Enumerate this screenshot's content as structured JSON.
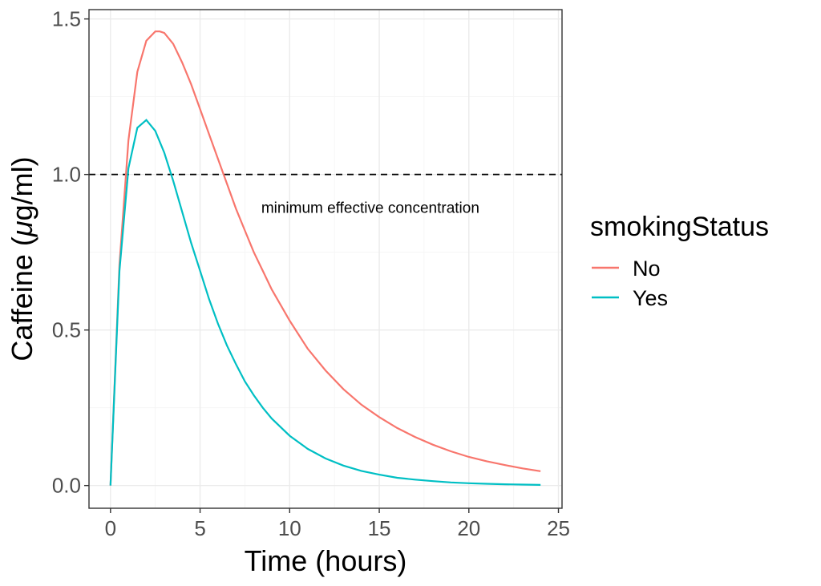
{
  "chart_data": {
    "type": "line",
    "xlabel": "Time (hours)",
    "ylabel_prefix": "Caffeine (",
    "ylabel_symbol": "μ",
    "ylabel_suffix": "g/ml)",
    "xlim": [
      -1.2,
      25.2
    ],
    "ylim": [
      -0.073,
      1.53
    ],
    "xticks": [
      0,
      5,
      10,
      15,
      20,
      25
    ],
    "xtick_labels": [
      "0",
      "5",
      "10",
      "15",
      "20",
      "25"
    ],
    "yticks": [
      0,
      0.5,
      1.0,
      1.5
    ],
    "ytick_labels": [
      "0.0",
      "0.5",
      "1.0",
      "1.5"
    ],
    "grid": true,
    "legend_position": "right",
    "legend_title": "smokingStatus",
    "hline": {
      "y": 1.0,
      "style": "dashed",
      "color": "#000000"
    },
    "annotation": {
      "text": "minimum effective concentration",
      "x": 14.5,
      "y": 0.895
    },
    "series": [
      {
        "name": "No",
        "color": "#F8766D",
        "x": [
          0,
          0.5,
          1,
          1.5,
          2,
          2.5,
          2.75,
          3,
          3.5,
          4,
          4.5,
          5,
          5.5,
          6,
          6.5,
          7,
          7.5,
          8,
          8.5,
          9,
          10,
          11,
          12,
          13,
          14,
          15,
          16,
          17,
          18,
          19,
          20,
          21,
          22,
          23,
          24
        ],
        "y": [
          0,
          0.71,
          1.11,
          1.33,
          1.43,
          1.46,
          1.46,
          1.455,
          1.42,
          1.36,
          1.29,
          1.21,
          1.13,
          1.05,
          0.97,
          0.89,
          0.82,
          0.75,
          0.69,
          0.63,
          0.53,
          0.44,
          0.37,
          0.31,
          0.26,
          0.22,
          0.185,
          0.156,
          0.131,
          0.11,
          0.092,
          0.078,
          0.066,
          0.055,
          0.046
        ]
      },
      {
        "name": "Yes",
        "color": "#00BFC4",
        "x": [
          0,
          0.5,
          1,
          1.5,
          2,
          2.5,
          3,
          3.5,
          4,
          4.5,
          5,
          5.5,
          6,
          6.5,
          7,
          7.5,
          8,
          8.5,
          9,
          10,
          11,
          12,
          13,
          14,
          15,
          16,
          17,
          18,
          19,
          20,
          21,
          22,
          23,
          24
        ],
        "y": [
          0,
          0.69,
          1.02,
          1.15,
          1.175,
          1.14,
          1.07,
          0.98,
          0.88,
          0.78,
          0.69,
          0.6,
          0.52,
          0.45,
          0.39,
          0.335,
          0.29,
          0.25,
          0.215,
          0.16,
          0.118,
          0.087,
          0.064,
          0.047,
          0.035,
          0.025,
          0.019,
          0.014,
          0.01,
          0.0075,
          0.0055,
          0.004,
          0.003,
          0.002
        ]
      }
    ]
  }
}
